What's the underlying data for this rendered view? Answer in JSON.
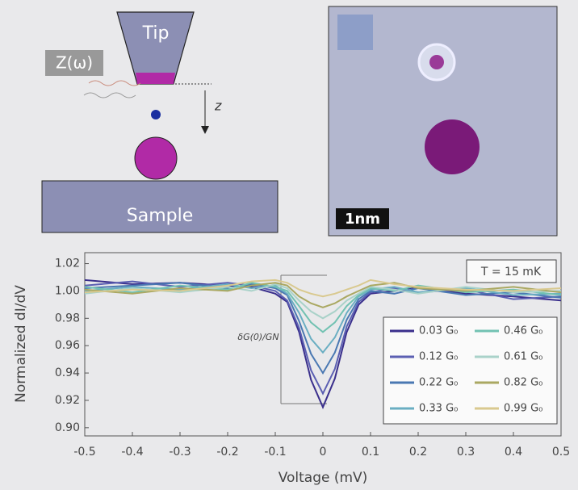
{
  "diagram": {
    "tip_label": "Tip",
    "signal_label": "Z(ω)",
    "distance_label": "z",
    "sample_label": "Sample"
  },
  "image": {
    "scale_label": "1nm"
  },
  "chart_data": {
    "type": "line",
    "xlabel": "Voltage (mV)",
    "ylabel": "Normalized dI/dV",
    "annotations": [
      "T = 15 mK",
      "δG(0)/GN"
    ],
    "x": [
      -0.5,
      -0.4,
      -0.3,
      -0.2,
      -0.15,
      -0.1,
      -0.075,
      -0.05,
      -0.025,
      0,
      0.025,
      0.05,
      0.075,
      0.1,
      0.15,
      0.2,
      0.3,
      0.4,
      0.5
    ],
    "xlim": [
      -0.5,
      0.5
    ],
    "xticks": [
      -0.5,
      -0.4,
      -0.3,
      -0.2,
      -0.1,
      0,
      0.1,
      0.2,
      0.3,
      0.4,
      0.5
    ],
    "ylim": [
      0.894,
      1.028
    ],
    "yticks": [
      {
        "value": 0.9,
        "label": "0.90"
      },
      0.92,
      0.94,
      0.96,
      0.98,
      {
        "value": 1,
        "label": "1.00"
      },
      1.02
    ],
    "series": [
      {
        "name": "0.03 G₀",
        "color": "#3a2f8c",
        "values": [
          1.008,
          1.005,
          1.006,
          1.004,
          1.003,
          0.998,
          0.992,
          0.97,
          0.935,
          0.915,
          0.936,
          0.97,
          0.99,
          0.998,
          1.0,
          1.003,
          0.998,
          0.996,
          0.993
        ]
      },
      {
        "name": "0.12 G₀",
        "color": "#5b5fb2",
        "values": [
          1.004,
          1.007,
          1.003,
          1.006,
          1.004,
          1.0,
          0.993,
          0.973,
          0.942,
          0.925,
          0.943,
          0.974,
          0.992,
          0.999,
          1.002,
          0.999,
          1.001,
          0.994,
          0.996
        ]
      },
      {
        "name": "0.22 G₀",
        "color": "#4a78b2",
        "values": [
          1.002,
          1.004,
          1.006,
          1.002,
          1.005,
          1.002,
          0.997,
          0.978,
          0.954,
          0.94,
          0.955,
          0.979,
          0.994,
          1.0,
          0.998,
          1.002,
          0.997,
          0.999,
          0.995
        ]
      },
      {
        "name": "0.33 G₀",
        "color": "#6aaec2",
        "values": [
          1.0,
          1.003,
          1.001,
          1.005,
          1.002,
          1.004,
          0.998,
          0.984,
          0.965,
          0.955,
          0.966,
          0.984,
          0.996,
          1.001,
          1.003,
          0.999,
          1.002,
          0.997,
          0.998
        ]
      },
      {
        "name": "0.46 G₀",
        "color": "#72c2b2",
        "values": [
          1.003,
          0.999,
          1.004,
          1.001,
          1.006,
          1.003,
          1.0,
          0.989,
          0.977,
          0.97,
          0.977,
          0.989,
          0.997,
          1.002,
          1.0,
          1.004,
          0.999,
          1.001,
          0.997
        ]
      },
      {
        "name": "0.61 G₀",
        "color": "#a9d2c9",
        "values": [
          0.998,
          1.002,
          0.999,
          1.003,
          1.0,
          1.005,
          1.002,
          0.993,
          0.985,
          0.98,
          0.985,
          0.993,
          0.998,
          1.003,
          1.001,
          0.998,
          1.003,
          0.999,
          1.0
        ]
      },
      {
        "name": "0.82 G₀",
        "color": "#aaa862",
        "values": [
          1.001,
          0.998,
          1.002,
          1.0,
          1.004,
          1.006,
          1.004,
          0.996,
          0.991,
          0.988,
          0.991,
          0.996,
          1.0,
          1.004,
          1.006,
          1.002,
          1.0,
          1.003,
          0.999
        ]
      },
      {
        "name": "0.99 G₀",
        "color": "#d9c98f",
        "values": [
          0.999,
          1.001,
          1.0,
          1.004,
          1.007,
          1.008,
          1.006,
          1.001,
          0.998,
          0.996,
          0.998,
          1.001,
          1.004,
          1.008,
          1.005,
          1.003,
          1.001,
          1.0,
          1.002
        ]
      }
    ]
  }
}
